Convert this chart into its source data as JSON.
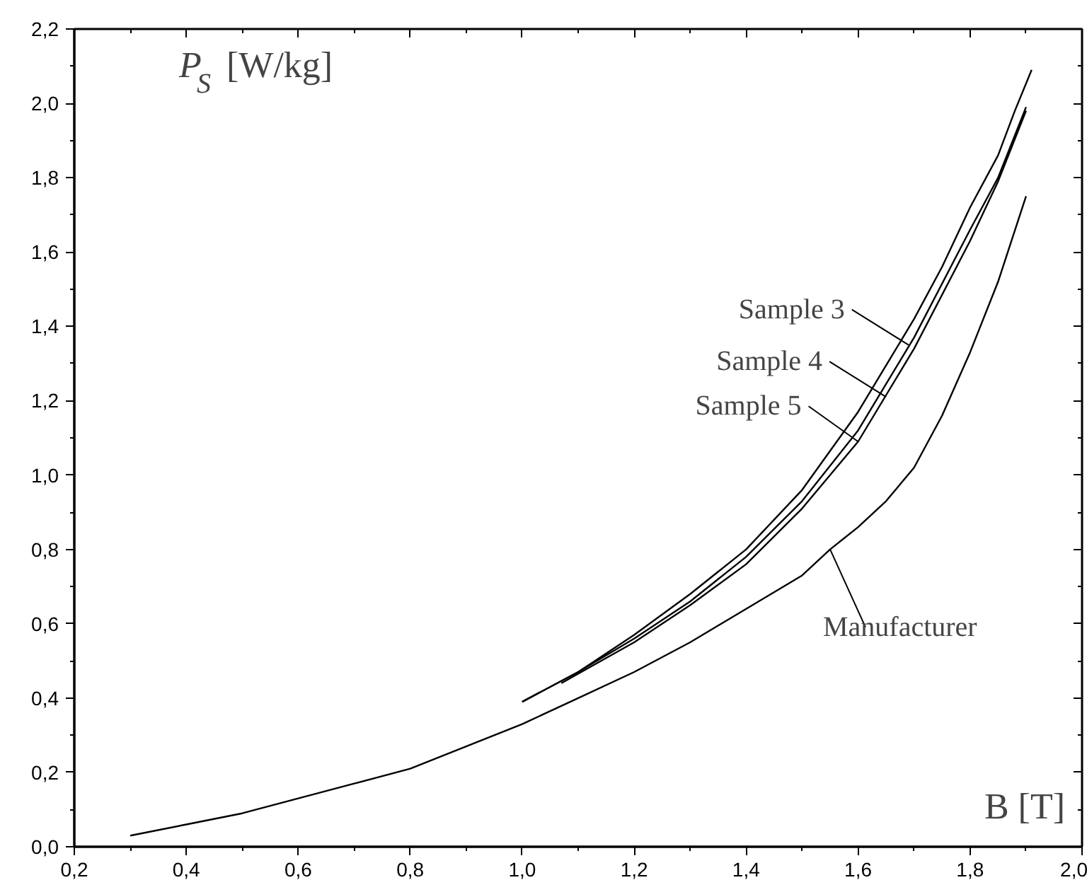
{
  "chart_data": {
    "type": "line",
    "xlabel": "B [T]",
    "ylabel": "P$_{S}$ [W/kg]",
    "xlim": [
      0.2,
      2.0
    ],
    "ylim": [
      0.0,
      2.2
    ],
    "xticks": [
      {
        "value": 0.2,
        "label": "0,2"
      },
      {
        "value": 0.4,
        "label": "0,4"
      },
      {
        "value": 0.6,
        "label": "0,6"
      },
      {
        "value": 0.8,
        "label": "0,8"
      },
      {
        "value": 1.0,
        "label": "1,0"
      },
      {
        "value": 1.2,
        "label": "1,2"
      },
      {
        "value": 1.4,
        "label": "1,4"
      },
      {
        "value": 1.6,
        "label": "1,6"
      },
      {
        "value": 1.8,
        "label": "1,8"
      },
      {
        "value": 2.0,
        "label": "2,0"
      }
    ],
    "yticks": [
      {
        "value": 0.0,
        "label": "0,0"
      },
      {
        "value": 0.2,
        "label": "0,2"
      },
      {
        "value": 0.4,
        "label": "0,4"
      },
      {
        "value": 0.6,
        "label": "0,6"
      },
      {
        "value": 0.8,
        "label": "0,8"
      },
      {
        "value": 1.0,
        "label": "1,0"
      },
      {
        "value": 1.2,
        "label": "1,2"
      },
      {
        "value": 1.4,
        "label": "1,4"
      },
      {
        "value": 1.6,
        "label": "1,6"
      },
      {
        "value": 1.8,
        "label": "1,8"
      },
      {
        "value": 2.0,
        "label": "2,0"
      },
      {
        "value": 2.2,
        "label": "2,2"
      }
    ],
    "grid": false,
    "marker": "none",
    "line_style": "solid",
    "series": [
      {
        "color": "#000000",
        "x": [
          1.0,
          1.1,
          1.2,
          1.3,
          1.4,
          1.5,
          1.6,
          1.7,
          1.75,
          1.8,
          1.85,
          1.88,
          1.91
        ],
        "values": [
          0.39,
          0.47,
          0.57,
          0.68,
          0.8,
          0.96,
          1.17,
          1.42,
          1.56,
          1.72,
          1.86,
          1.98,
          2.09
        ]
      },
      {
        "color": "#000000",
        "x": [
          1.0,
          1.1,
          1.2,
          1.3,
          1.4,
          1.5,
          1.6,
          1.7,
          1.8,
          1.85,
          1.9
        ],
        "values": [
          0.39,
          0.47,
          0.56,
          0.66,
          0.78,
          0.93,
          1.12,
          1.37,
          1.66,
          1.8,
          1.99
        ]
      },
      {
        "color": "#000000",
        "x": [
          1.07,
          1.2,
          1.3,
          1.4,
          1.5,
          1.6,
          1.7,
          1.8,
          1.85,
          1.9
        ],
        "values": [
          0.44,
          0.55,
          0.65,
          0.76,
          0.91,
          1.09,
          1.34,
          1.63,
          1.79,
          1.98
        ]
      },
      {
        "color": "#000000",
        "x": [
          0.3,
          0.4,
          0.5,
          0.6,
          0.7,
          0.8,
          0.9,
          1.0,
          1.1,
          1.2,
          1.3,
          1.4,
          1.5,
          1.55,
          1.6,
          1.65,
          1.7,
          1.75,
          1.8,
          1.85,
          1.9
        ],
        "values": [
          0.03,
          0.06,
          0.09,
          0.13,
          0.17,
          0.21,
          0.27,
          0.33,
          0.4,
          0.47,
          0.55,
          0.64,
          0.73,
          0.8,
          0.86,
          0.93,
          1.02,
          1.16,
          1.33,
          1.52,
          1.75
        ]
      }
    ],
    "annotations": [
      {
        "text": "Sample 3",
        "x": 1.69,
        "y": 1.35
      },
      {
        "text": "Sample 4",
        "x": 1.65,
        "y": 1.21
      },
      {
        "text": "Sample 5",
        "x": 1.6,
        "y": 1.09
      },
      {
        "text": "Manufacturer",
        "x": 1.55,
        "y": 0.8
      }
    ]
  }
}
